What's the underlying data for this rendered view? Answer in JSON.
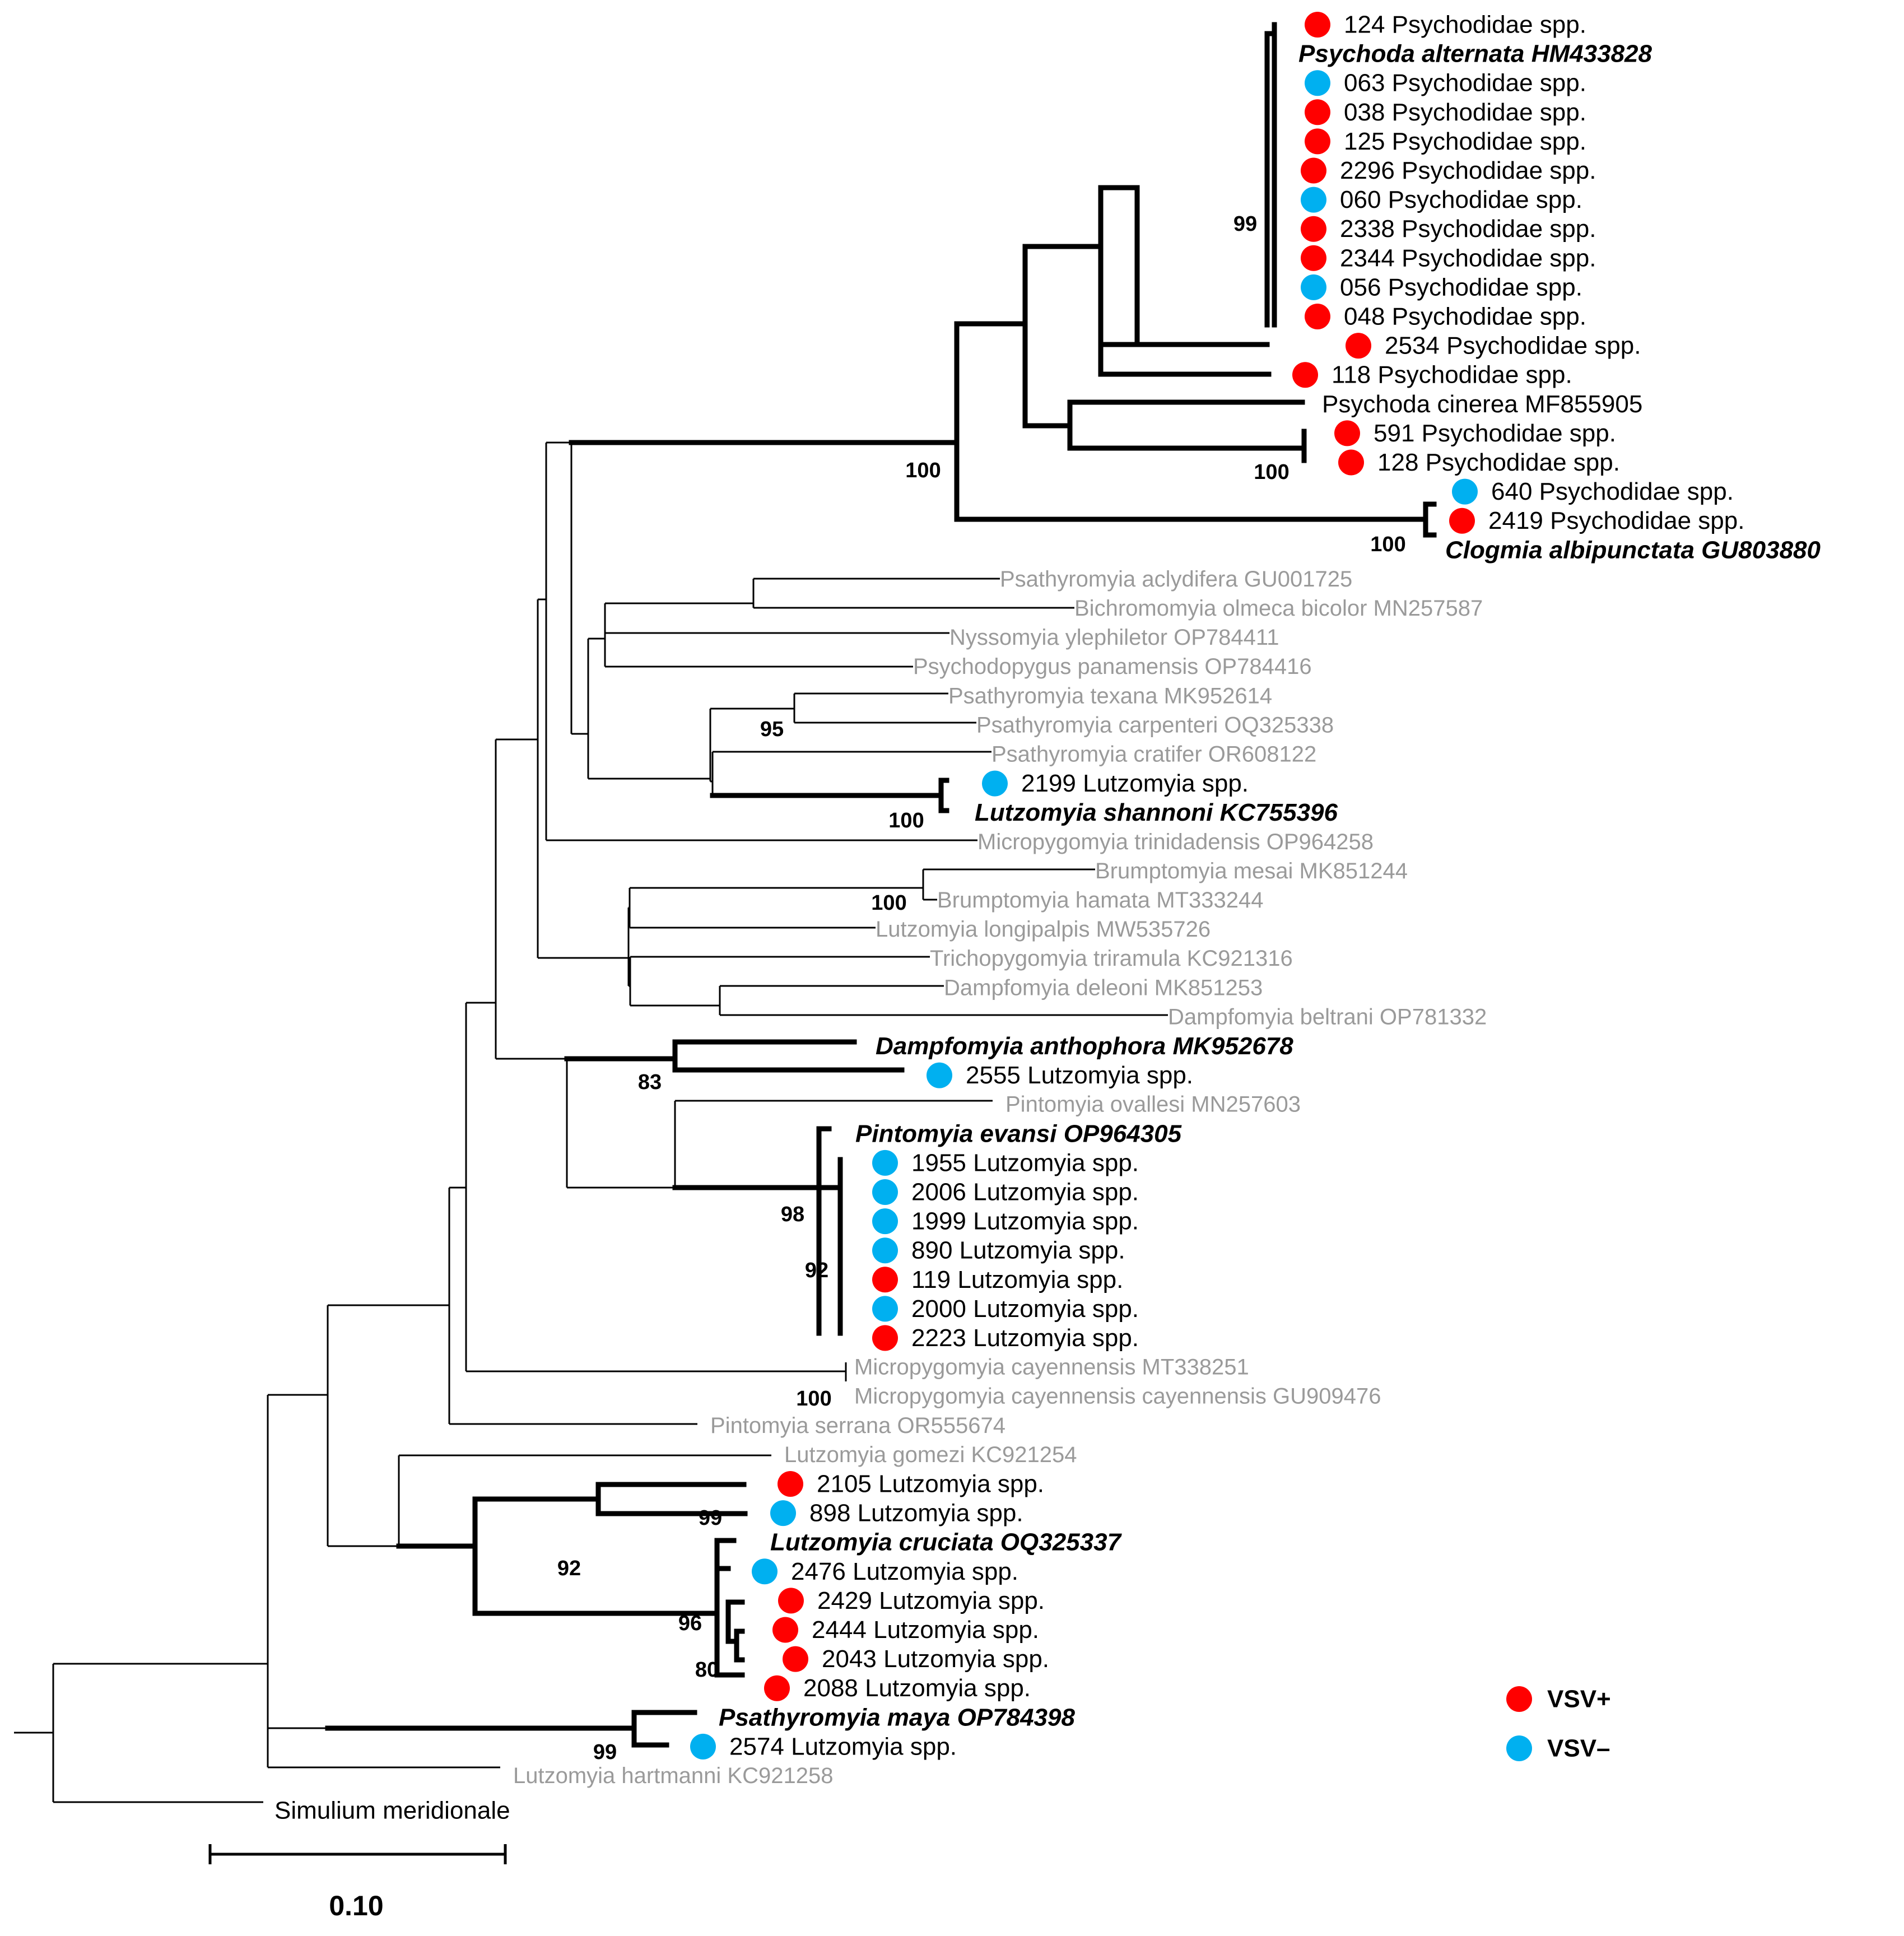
{
  "colors": {
    "vsv_pos": "#ff0000",
    "vsv_neg": "#00b0f0",
    "gray_taxon": "#9a9a9a"
  },
  "tips": [
    {
      "id": "t1",
      "label": "124 Psychodidae spp.",
      "style": "black",
      "marker": "pos"
    },
    {
      "id": "t2",
      "label": "Psychoda alternata HM433828",
      "style": "bold",
      "marker": null
    },
    {
      "id": "t3",
      "label": "063 Psychodidae spp.",
      "style": "black",
      "marker": "neg"
    },
    {
      "id": "t4",
      "label": "038 Psychodidae spp.",
      "style": "black",
      "marker": "pos"
    },
    {
      "id": "t5",
      "label": "125 Psychodidae spp.",
      "style": "black",
      "marker": "pos"
    },
    {
      "id": "t6",
      "label": "2296 Psychodidae spp.",
      "style": "black",
      "marker": "pos"
    },
    {
      "id": "t7",
      "label": "060 Psychodidae spp.",
      "style": "black",
      "marker": "neg"
    },
    {
      "id": "t8",
      "label": "2338 Psychodidae spp.",
      "style": "black",
      "marker": "pos"
    },
    {
      "id": "t9",
      "label": "2344 Psychodidae spp.",
      "style": "black",
      "marker": "pos"
    },
    {
      "id": "t10",
      "label": "056 Psychodidae spp.",
      "style": "black",
      "marker": "neg"
    },
    {
      "id": "t11",
      "label": "048 Psychodidae spp.",
      "style": "black",
      "marker": "pos"
    },
    {
      "id": "t12",
      "label": "2534 Psychodidae spp.",
      "style": "black",
      "marker": "pos"
    },
    {
      "id": "t13",
      "label": "118 Psychodidae spp.",
      "style": "black",
      "marker": "pos"
    },
    {
      "id": "t14",
      "label": "Psychoda cinerea MF855905",
      "style": "black",
      "marker": null
    },
    {
      "id": "t15",
      "label": "591 Psychodidae spp.",
      "style": "black",
      "marker": "pos"
    },
    {
      "id": "t16",
      "label": "128 Psychodidae spp.",
      "style": "black",
      "marker": "pos"
    },
    {
      "id": "t17",
      "label": "640 Psychodidae spp.",
      "style": "black",
      "marker": "neg"
    },
    {
      "id": "t18",
      "label": "2419 Psychodidae spp.",
      "style": "black",
      "marker": "pos"
    },
    {
      "id": "t19",
      "label": "Clogmia albipunctata GU803880",
      "style": "bold",
      "marker": null
    },
    {
      "id": "t20",
      "label": "Psathyromyia aclydifera GU001725",
      "style": "gray",
      "marker": null
    },
    {
      "id": "t21",
      "label": "Bichromomyia olmeca bicolor MN257587",
      "style": "gray",
      "marker": null
    },
    {
      "id": "t22",
      "label": "Nyssomyia ylephiletor OP784411",
      "style": "gray",
      "marker": null
    },
    {
      "id": "t23",
      "label": "Psychodopygus panamensis OP784416",
      "style": "gray",
      "marker": null
    },
    {
      "id": "t24",
      "label": "Psathyromyia texana MK952614",
      "style": "gray",
      "marker": null
    },
    {
      "id": "t25",
      "label": "Psathyromyia carpenteri OQ325338",
      "style": "gray",
      "marker": null
    },
    {
      "id": "t26",
      "label": "Psathyromyia cratifer OR608122",
      "style": "gray",
      "marker": null
    },
    {
      "id": "t27",
      "label": "2199 Lutzomyia spp.",
      "style": "black",
      "marker": "neg"
    },
    {
      "id": "t28",
      "label": "Lutzomyia shannoni KC755396",
      "style": "bold",
      "marker": null
    },
    {
      "id": "t29",
      "label": "Micropygomyia trinidadensis OP964258",
      "style": "gray",
      "marker": null
    },
    {
      "id": "t30",
      "label": "Brumptomyia mesai MK851244",
      "style": "gray",
      "marker": null
    },
    {
      "id": "t31",
      "label": "Brumptomyia hamata MT333244",
      "style": "gray",
      "marker": null
    },
    {
      "id": "t32",
      "label": "Lutzomyia longipalpis MW535726",
      "style": "gray",
      "marker": null
    },
    {
      "id": "t33",
      "label": "Trichopygomyia triramula KC921316",
      "style": "gray",
      "marker": null
    },
    {
      "id": "t34",
      "label": "Dampfomyia deleoni MK851253",
      "style": "gray",
      "marker": null
    },
    {
      "id": "t35",
      "label": "Dampfomyia beltrani OP781332",
      "style": "gray",
      "marker": null
    },
    {
      "id": "t36",
      "label": "Dampfomyia anthophora MK952678",
      "style": "bold",
      "marker": null
    },
    {
      "id": "t37",
      "label": "2555 Lutzomyia spp.",
      "style": "black",
      "marker": "neg"
    },
    {
      "id": "t38",
      "label": "Pintomyia ovallesi MN257603",
      "style": "gray",
      "marker": null
    },
    {
      "id": "t39",
      "label": "Pintomyia evansi OP964305",
      "style": "bold",
      "marker": null
    },
    {
      "id": "t40",
      "label": "1955 Lutzomyia spp.",
      "style": "black",
      "marker": "neg"
    },
    {
      "id": "t41",
      "label": "2006 Lutzomyia spp.",
      "style": "black",
      "marker": "neg"
    },
    {
      "id": "t42",
      "label": "1999 Lutzomyia spp.",
      "style": "black",
      "marker": "neg"
    },
    {
      "id": "t43",
      "label": "890 Lutzomyia spp.",
      "style": "black",
      "marker": "neg"
    },
    {
      "id": "t44",
      "label": "119 Lutzomyia spp.",
      "style": "black",
      "marker": "pos"
    },
    {
      "id": "t45",
      "label": "2000 Lutzomyia spp.",
      "style": "black",
      "marker": "neg"
    },
    {
      "id": "t46",
      "label": "2223 Lutzomyia spp.",
      "style": "black",
      "marker": "pos"
    },
    {
      "id": "t47",
      "label": "Micropygomyia cayennensis MT338251",
      "style": "gray",
      "marker": null
    },
    {
      "id": "t48",
      "label": "Micropygomyia cayennensis cayennensis GU909476",
      "style": "gray",
      "marker": null
    },
    {
      "id": "t49",
      "label": "Pintomyia serrana OR555674",
      "style": "gray",
      "marker": null
    },
    {
      "id": "t50",
      "label": "Lutzomyia gomezi KC921254",
      "style": "gray",
      "marker": null
    },
    {
      "id": "t51",
      "label": "2105 Lutzomyia spp.",
      "style": "black",
      "marker": "pos"
    },
    {
      "id": "t52",
      "label": "898 Lutzomyia spp.",
      "style": "black",
      "marker": "neg"
    },
    {
      "id": "t53",
      "label": "Lutzomyia cruciata OQ325337",
      "style": "bold",
      "marker": null
    },
    {
      "id": "t54",
      "label": "2476 Lutzomyia spp.",
      "style": "black",
      "marker": "neg"
    },
    {
      "id": "t55",
      "label": "2429 Lutzomyia spp.",
      "style": "black",
      "marker": "pos"
    },
    {
      "id": "t56",
      "label": "2444 Lutzomyia spp.",
      "style": "black",
      "marker": "pos"
    },
    {
      "id": "t57",
      "label": "2043 Lutzomyia spp.",
      "style": "black",
      "marker": "pos"
    },
    {
      "id": "t58",
      "label": "2088 Lutzomyia spp.",
      "style": "black",
      "marker": "pos"
    },
    {
      "id": "t59",
      "label": "Psathyromyia maya OP784398",
      "style": "bold",
      "marker": null
    },
    {
      "id": "t60",
      "label": "2574 Lutzomyia spp.",
      "style": "black",
      "marker": "neg"
    },
    {
      "id": "t61",
      "label": "Lutzomyia hartmanni KC921258",
      "style": "gray",
      "marker": null
    },
    {
      "id": "t62",
      "label": "Simulium meridionale",
      "style": "black",
      "marker": null
    }
  ],
  "bootstrap": [
    {
      "id": "b1",
      "value": "99"
    },
    {
      "id": "b2",
      "value": "100"
    },
    {
      "id": "b3",
      "value": "100"
    },
    {
      "id": "b4",
      "value": "100"
    },
    {
      "id": "b5",
      "value": "95"
    },
    {
      "id": "b6",
      "value": "100"
    },
    {
      "id": "b7",
      "value": "100"
    },
    {
      "id": "b8",
      "value": "83"
    },
    {
      "id": "b9",
      "value": "98"
    },
    {
      "id": "b10",
      "value": "92"
    },
    {
      "id": "b11",
      "value": "100"
    },
    {
      "id": "b12",
      "value": "99"
    },
    {
      "id": "b13",
      "value": "92"
    },
    {
      "id": "b14",
      "value": "96"
    },
    {
      "id": "b15",
      "value": "80"
    },
    {
      "id": "b16",
      "value": "99"
    }
  ],
  "legend": {
    "pos_label": "VSV+",
    "neg_label": "VSV–"
  },
  "scale_bar": {
    "value": "0.10"
  }
}
